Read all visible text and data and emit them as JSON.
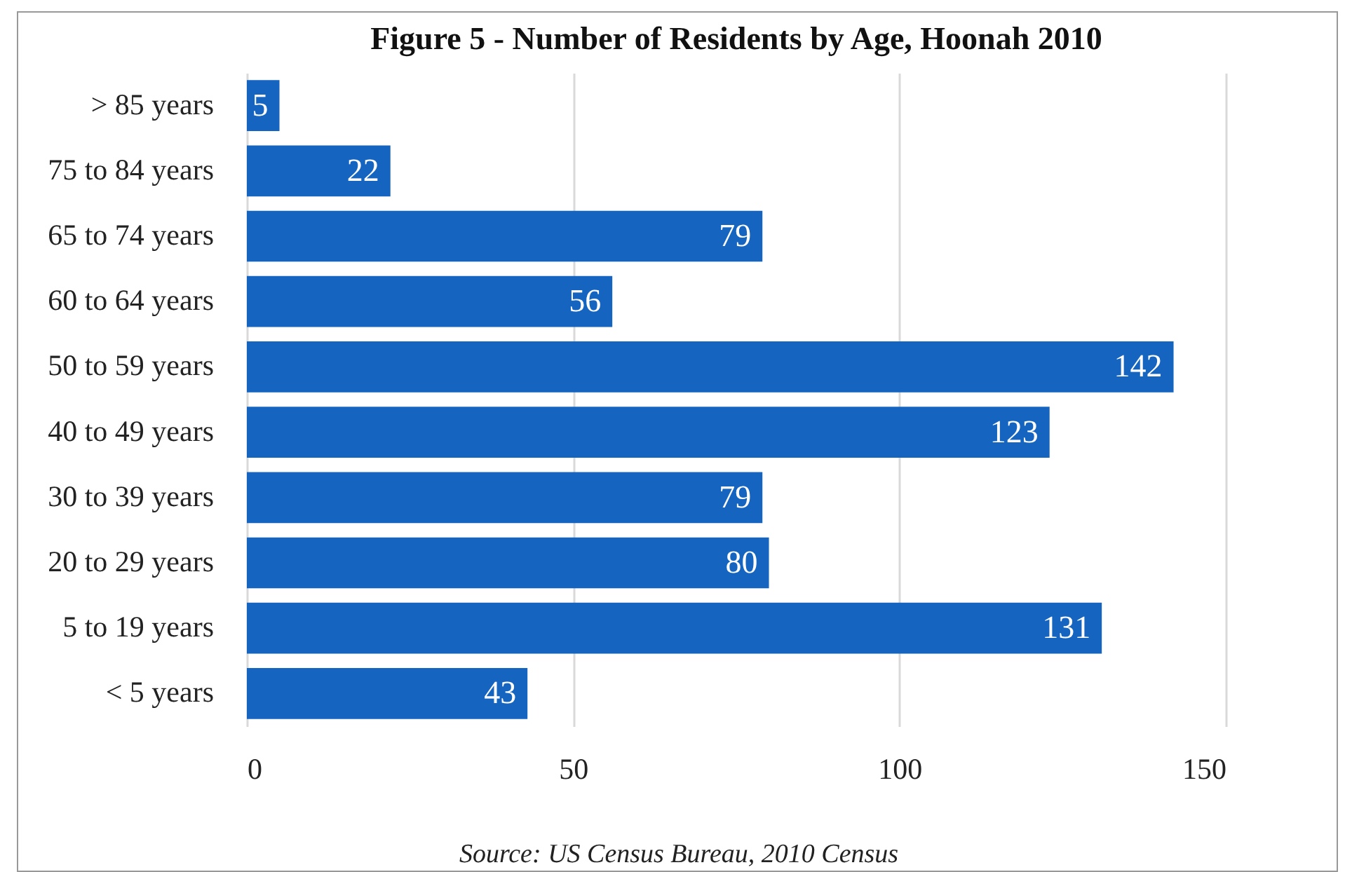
{
  "chart_data": {
    "type": "bar",
    "orientation": "horizontal",
    "title": "Figure 5 - Number of Residents by Age, Hoonah 2010",
    "categories": [
      "> 85 years",
      "75 to 84 years",
      "65 to 74 years",
      "60 to 64 years",
      "50 to 59 years",
      "40 to 49 years",
      "30 to 39 years",
      "20 to 29 years",
      "5 to 19 years",
      "< 5 years"
    ],
    "values": [
      5,
      22,
      79,
      56,
      142,
      123,
      79,
      80,
      131,
      43
    ],
    "color": "#1565c0",
    "xlim": [
      0,
      150
    ],
    "xticks": [
      0,
      50,
      100,
      150
    ],
    "grid": "x",
    "data_labels": true,
    "annotations": [
      "Source: US Census Bureau, 2010 Census"
    ]
  }
}
